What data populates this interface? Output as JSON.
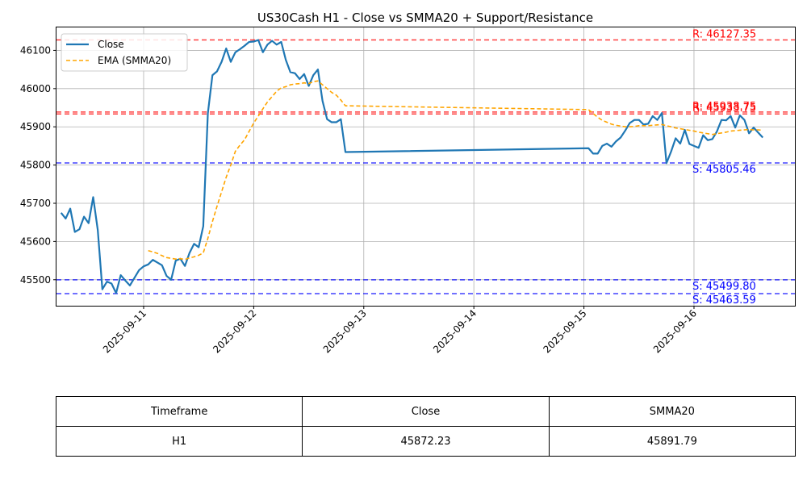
{
  "chart_data": {
    "type": "line",
    "title": "US30Cash H1 - Close vs SMMA20 + Support/Resistance",
    "xlabel": "",
    "ylabel": "",
    "x_range": [
      "2025-09-10 05:00",
      "2025-09-16 22:00"
    ],
    "ylim": [
      45432,
      46160
    ],
    "yticks": [
      45500,
      45600,
      45700,
      45800,
      45900,
      46000,
      46100
    ],
    "xticks": [
      "2025-09-11",
      "2025-09-12",
      "2025-09-13",
      "2025-09-14",
      "2025-09-15",
      "2025-09-16"
    ],
    "grid": true,
    "legend": "upper-left",
    "series": [
      {
        "name": "Close",
        "color": "#1f77b4",
        "style": "solid",
        "points": [
          [
            "2025-09-10 06:00",
            45675
          ],
          [
            "2025-09-10 07:00",
            45660
          ],
          [
            "2025-09-10 08:00",
            45686
          ],
          [
            "2025-09-10 09:00",
            45625
          ],
          [
            "2025-09-10 10:00",
            45632
          ],
          [
            "2025-09-10 11:00",
            45665
          ],
          [
            "2025-09-10 12:00",
            45648
          ],
          [
            "2025-09-10 13:00",
            45716
          ],
          [
            "2025-09-10 14:00",
            45630
          ],
          [
            "2025-09-10 15:00",
            45475
          ],
          [
            "2025-09-10 16:00",
            45495
          ],
          [
            "2025-09-10 17:00",
            45490
          ],
          [
            "2025-09-10 18:00",
            45465
          ],
          [
            "2025-09-10 19:00",
            45512
          ],
          [
            "2025-09-10 20:00",
            45498
          ],
          [
            "2025-09-10 21:00",
            45485
          ],
          [
            "2025-09-10 22:00",
            45505
          ],
          [
            "2025-09-10 23:00",
            45525
          ],
          [
            "2025-09-11 00:00",
            45535
          ],
          [
            "2025-09-11 01:00",
            45540
          ],
          [
            "2025-09-11 02:00",
            45552
          ],
          [
            "2025-09-11 03:00",
            45545
          ],
          [
            "2025-09-11 04:00",
            45538
          ],
          [
            "2025-09-11 05:00",
            45510
          ],
          [
            "2025-09-11 06:00",
            45500
          ],
          [
            "2025-09-11 07:00",
            45550
          ],
          [
            "2025-09-11 08:00",
            45555
          ],
          [
            "2025-09-11 09:00",
            45536
          ],
          [
            "2025-09-11 10:00",
            45570
          ],
          [
            "2025-09-11 11:00",
            45594
          ],
          [
            "2025-09-11 12:00",
            45585
          ],
          [
            "2025-09-11 13:00",
            45640
          ],
          [
            "2025-09-11 14:00",
            45935
          ],
          [
            "2025-09-11 15:00",
            46035
          ],
          [
            "2025-09-11 16:00",
            46045
          ],
          [
            "2025-09-11 17:00",
            46070
          ],
          [
            "2025-09-11 18:00",
            46105
          ],
          [
            "2025-09-11 19:00",
            46070
          ],
          [
            "2025-09-11 20:00",
            46095
          ],
          [
            "2025-09-11 21:00",
            46103
          ],
          [
            "2025-09-11 22:00",
            46112
          ],
          [
            "2025-09-11 23:00",
            46122
          ],
          [
            "2025-09-12 00:00",
            46123
          ],
          [
            "2025-09-12 01:00",
            46127
          ],
          [
            "2025-09-12 02:00",
            46095
          ],
          [
            "2025-09-12 03:00",
            46115
          ],
          [
            "2025-09-12 04:00",
            46125
          ],
          [
            "2025-09-12 05:00",
            46115
          ],
          [
            "2025-09-12 06:00",
            46122
          ],
          [
            "2025-09-12 07:00",
            46075
          ],
          [
            "2025-09-12 08:00",
            46043
          ],
          [
            "2025-09-12 09:00",
            46040
          ],
          [
            "2025-09-12 10:00",
            46025
          ],
          [
            "2025-09-12 11:00",
            46038
          ],
          [
            "2025-09-12 12:00",
            46007
          ],
          [
            "2025-09-12 13:00",
            46035
          ],
          [
            "2025-09-12 14:00",
            46050
          ],
          [
            "2025-09-12 15:00",
            45968
          ],
          [
            "2025-09-12 16:00",
            45920
          ],
          [
            "2025-09-12 17:00",
            45912
          ],
          [
            "2025-09-12 18:00",
            45912
          ],
          [
            "2025-09-12 19:00",
            45920
          ],
          [
            "2025-09-12 20:00",
            45834
          ],
          [
            "2025-09-15 01:00",
            45844
          ],
          [
            "2025-09-15 02:00",
            45830
          ],
          [
            "2025-09-15 03:00",
            45830
          ],
          [
            "2025-09-15 04:00",
            45850
          ],
          [
            "2025-09-15 05:00",
            45856
          ],
          [
            "2025-09-15 06:00",
            45848
          ],
          [
            "2025-09-15 07:00",
            45862
          ],
          [
            "2025-09-15 08:00",
            45872
          ],
          [
            "2025-09-15 09:00",
            45890
          ],
          [
            "2025-09-15 10:00",
            45910
          ],
          [
            "2025-09-15 11:00",
            45918
          ],
          [
            "2025-09-15 12:00",
            45918
          ],
          [
            "2025-09-15 13:00",
            45906
          ],
          [
            "2025-09-15 14:00",
            45908
          ],
          [
            "2025-09-15 15:00",
            45928
          ],
          [
            "2025-09-15 16:00",
            45918
          ],
          [
            "2025-09-15 17:00",
            45936
          ],
          [
            "2025-09-15 18:00",
            45805
          ],
          [
            "2025-09-15 19:00",
            45835
          ],
          [
            "2025-09-15 20:00",
            45870
          ],
          [
            "2025-09-15 21:00",
            45856
          ],
          [
            "2025-09-15 22:00",
            45892
          ],
          [
            "2025-09-15 23:00",
            45855
          ],
          [
            "2025-09-16 00:00",
            45850
          ],
          [
            "2025-09-16 01:00",
            45845
          ],
          [
            "2025-09-16 02:00",
            45878
          ],
          [
            "2025-09-16 03:00",
            45865
          ],
          [
            "2025-09-16 04:00",
            45868
          ],
          [
            "2025-09-16 05:00",
            45888
          ],
          [
            "2025-09-16 06:00",
            45918
          ],
          [
            "2025-09-16 07:00",
            45917
          ],
          [
            "2025-09-16 08:00",
            45928
          ],
          [
            "2025-09-16 09:00",
            45898
          ],
          [
            "2025-09-16 10:00",
            45930
          ],
          [
            "2025-09-16 11:00",
            45918
          ],
          [
            "2025-09-16 12:00",
            45883
          ],
          [
            "2025-09-16 13:00",
            45898
          ],
          [
            "2025-09-16 14:00",
            45885
          ],
          [
            "2025-09-16 15:00",
            45872
          ]
        ]
      },
      {
        "name": "EMA (SMMA20)",
        "color": "#ffa500",
        "style": "dashed",
        "points": [
          [
            "2025-09-11 01:00",
            45576
          ],
          [
            "2025-09-11 02:00",
            45573
          ],
          [
            "2025-09-11 03:00",
            45569
          ],
          [
            "2025-09-11 04:00",
            45563
          ],
          [
            "2025-09-11 05:00",
            45558
          ],
          [
            "2025-09-11 06:00",
            45556
          ],
          [
            "2025-09-11 07:00",
            45554
          ],
          [
            "2025-09-11 08:00",
            45555
          ],
          [
            "2025-09-11 09:00",
            45553
          ],
          [
            "2025-09-11 10:00",
            45557
          ],
          [
            "2025-09-11 11:00",
            45560
          ],
          [
            "2025-09-11 12:00",
            45564
          ],
          [
            "2025-09-11 13:00",
            45570
          ],
          [
            "2025-09-11 14:00",
            45608
          ],
          [
            "2025-09-11 15:00",
            45652
          ],
          [
            "2025-09-11 16:00",
            45692
          ],
          [
            "2025-09-11 17:00",
            45730
          ],
          [
            "2025-09-11 18:00",
            45768
          ],
          [
            "2025-09-11 19:00",
            45800
          ],
          [
            "2025-09-11 20:00",
            45836
          ],
          [
            "2025-09-11 21:00",
            45852
          ],
          [
            "2025-09-11 22:00",
            45866
          ],
          [
            "2025-09-11 23:00",
            45888
          ],
          [
            "2025-09-12 00:00",
            45910
          ],
          [
            "2025-09-12 01:00",
            45928
          ],
          [
            "2025-09-12 02:00",
            45947
          ],
          [
            "2025-09-12 03:00",
            45965
          ],
          [
            "2025-09-12 04:00",
            45979
          ],
          [
            "2025-09-12 05:00",
            45993
          ],
          [
            "2025-09-12 06:00",
            46002
          ],
          [
            "2025-09-12 07:00",
            46005
          ],
          [
            "2025-09-12 08:00",
            46010
          ],
          [
            "2025-09-12 09:00",
            46012
          ],
          [
            "2025-09-12 10:00",
            46013
          ],
          [
            "2025-09-12 11:00",
            46015
          ],
          [
            "2025-09-12 12:00",
            46013
          ],
          [
            "2025-09-12 13:00",
            46018
          ],
          [
            "2025-09-12 14:00",
            46020
          ],
          [
            "2025-09-12 15:00",
            46010
          ],
          [
            "2025-09-12 16:00",
            46000
          ],
          [
            "2025-09-12 17:00",
            45990
          ],
          [
            "2025-09-12 18:00",
            45983
          ],
          [
            "2025-09-12 19:00",
            45970
          ],
          [
            "2025-09-12 20:00",
            45955
          ],
          [
            "2025-09-15 01:00",
            45945
          ],
          [
            "2025-09-15 02:00",
            45935
          ],
          [
            "2025-09-15 03:00",
            45925
          ],
          [
            "2025-09-15 04:00",
            45917
          ],
          [
            "2025-09-15 05:00",
            45912
          ],
          [
            "2025-09-15 06:00",
            45907
          ],
          [
            "2025-09-15 07:00",
            45904
          ],
          [
            "2025-09-15 08:00",
            45902
          ],
          [
            "2025-09-15 09:00",
            45900
          ],
          [
            "2025-09-15 10:00",
            45900
          ],
          [
            "2025-09-15 11:00",
            45901
          ],
          [
            "2025-09-15 12:00",
            45903
          ],
          [
            "2025-09-15 13:00",
            45903
          ],
          [
            "2025-09-15 14:00",
            45903
          ],
          [
            "2025-09-15 15:00",
            45904
          ],
          [
            "2025-09-15 16:00",
            45905
          ],
          [
            "2025-09-15 17:00",
            45906
          ],
          [
            "2025-09-15 18:00",
            45903
          ],
          [
            "2025-09-15 19:00",
            45900
          ],
          [
            "2025-09-15 20:00",
            45897
          ],
          [
            "2025-09-15 21:00",
            45895
          ],
          [
            "2025-09-15 22:00",
            45893
          ],
          [
            "2025-09-15 23:00",
            45891
          ],
          [
            "2025-09-16 00:00",
            45889
          ],
          [
            "2025-09-16 01:00",
            45886
          ],
          [
            "2025-09-16 02:00",
            45884
          ],
          [
            "2025-09-16 03:00",
            45882
          ],
          [
            "2025-09-16 04:00",
            45880
          ],
          [
            "2025-09-16 05:00",
            45882
          ],
          [
            "2025-09-16 06:00",
            45884
          ],
          [
            "2025-09-16 07:00",
            45886
          ],
          [
            "2025-09-16 08:00",
            45889
          ],
          [
            "2025-09-16 09:00",
            45890
          ],
          [
            "2025-09-16 10:00",
            45891
          ],
          [
            "2025-09-16 11:00",
            45892
          ],
          [
            "2025-09-16 12:00",
            45893
          ],
          [
            "2025-09-16 13:00",
            45892
          ],
          [
            "2025-09-16 14:00",
            45892
          ],
          [
            "2025-09-16 15:00",
            45891
          ]
        ]
      }
    ],
    "levels": [
      {
        "kind": "resistance",
        "value": 46127.35,
        "label": "R: 46127.35",
        "color": "#ff0000"
      },
      {
        "kind": "resistance",
        "value": 45938.75,
        "label": "R: 45938.75",
        "color": "#ff0000"
      },
      {
        "kind": "resistance",
        "value": 45933.75,
        "label": "R: 45933.75",
        "color": "#ff0000"
      },
      {
        "kind": "support",
        "value": 45805.46,
        "label": "S: 45805.46",
        "color": "#0000ff"
      },
      {
        "kind": "support",
        "value": 45499.8,
        "label": "S: 45499.80",
        "color": "#0000ff"
      },
      {
        "kind": "support",
        "value": 45463.59,
        "label": "S: 45463.59",
        "color": "#0000ff"
      }
    ]
  },
  "table": {
    "headers": [
      "Timeframe",
      "Close",
      "SMMA20"
    ],
    "rows": [
      [
        "H1",
        "45872.23",
        "45891.79"
      ]
    ]
  }
}
